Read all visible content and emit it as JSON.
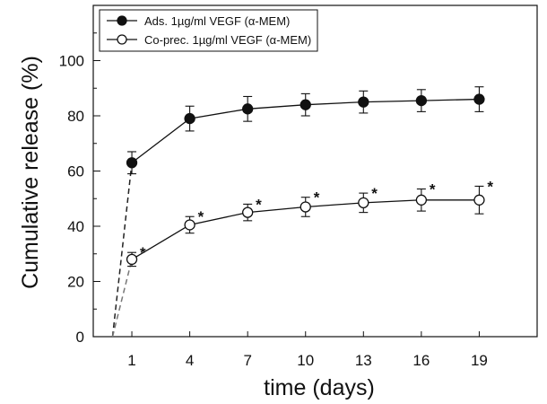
{
  "chart_data": {
    "type": "line",
    "xlabel": "time (days)",
    "ylabel": "Cumulative release (%)",
    "xlim": [
      -1,
      22
    ],
    "ylim": [
      0,
      120
    ],
    "x_ticks": [
      1,
      4,
      7,
      10,
      13,
      16,
      19
    ],
    "y_ticks": [
      0,
      20,
      40,
      60,
      80,
      100
    ],
    "legend_position": "top-left",
    "grid": false,
    "origin_extrapolation": "dashed line from (0, 0) to day 1 value for each series",
    "series": [
      {
        "name": "Ads. 1µg/ml VEGF (α-MEM)",
        "marker": "filled-circle",
        "color": "#111111",
        "x": [
          1,
          4,
          7,
          10,
          13,
          16,
          19
        ],
        "y": [
          63,
          79,
          82.5,
          84,
          85,
          85.5,
          86
        ],
        "error": [
          4,
          4.5,
          4.5,
          4,
          4,
          4,
          4.5
        ]
      },
      {
        "name": "Co-prec. 1µg/ml VEGF (α-MEM)",
        "marker": "open-circle",
        "color": "#111111",
        "x": [
          1,
          4,
          7,
          10,
          13,
          16,
          19
        ],
        "y": [
          28,
          40.5,
          45,
          47,
          48.5,
          49.5,
          49.5
        ],
        "error": [
          2.5,
          3,
          3,
          3.5,
          3.5,
          4,
          5
        ],
        "annotations": [
          "*",
          "*",
          "*",
          "*",
          "*",
          "*",
          "*"
        ]
      }
    ]
  }
}
